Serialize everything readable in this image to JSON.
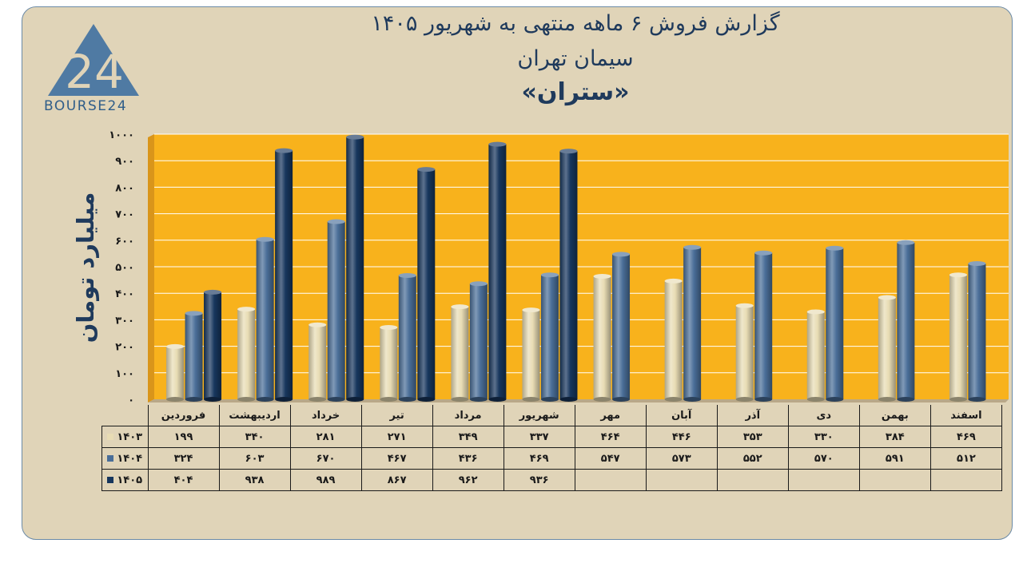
{
  "title_line1": "گزارش  فروش ۶ ماهه منتهی به شهریور ۱۴۰۵",
  "title_line2": "سیمان تهران",
  "title_line3": "«ستران»",
  "logo_text": "BOURSE24",
  "logo_number": "24",
  "chart_data": {
    "type": "bar",
    "ylabel": "میلیارد تومان",
    "ylim": [
      0,
      1000
    ],
    "yticks": [
      "۰",
      "۱۰۰",
      "۲۰۰",
      "۳۰۰",
      "۴۰۰",
      "۵۰۰",
      "۶۰۰",
      "۷۰۰",
      "۸۰۰",
      "۹۰۰",
      "۱۰۰۰"
    ],
    "yticks_values": [
      0,
      100,
      200,
      300,
      400,
      500,
      600,
      700,
      800,
      900,
      1000
    ],
    "categories": [
      "فروردین",
      "اردیبهشت",
      "خرداد",
      "تیر",
      "مرداد",
      "شهریور",
      "مهر",
      "آبان",
      "آذر",
      "دی",
      "بهمن",
      "اسفند"
    ],
    "series": [
      {
        "name": "۱۴۰۳",
        "color": "#e8dcb4",
        "values": [
          199,
          340,
          281,
          271,
          349,
          337,
          464,
          446,
          353,
          330,
          384,
          469
        ],
        "labels": [
          "۱۹۹",
          "۳۴۰",
          "۲۸۱",
          "۲۷۱",
          "۳۴۹",
          "۳۳۷",
          "۴۶۴",
          "۴۴۶",
          "۳۵۳",
          "۳۳۰",
          "۳۸۴",
          "۴۶۹"
        ]
      },
      {
        "name": "۱۴۰۴",
        "color": "#4a6e98",
        "values": [
          324,
          603,
          670,
          467,
          436,
          469,
          547,
          573,
          552,
          570,
          591,
          512
        ],
        "labels": [
          "۳۲۴",
          "۶۰۳",
          "۶۷۰",
          "۴۶۷",
          "۴۳۶",
          "۴۶۹",
          "۵۴۷",
          "۵۷۳",
          "۵۵۲",
          "۵۷۰",
          "۵۹۱",
          "۵۱۲"
        ]
      },
      {
        "name": "۱۴۰۵",
        "color": "#17365d",
        "values": [
          404,
          938,
          989,
          867,
          962,
          936,
          null,
          null,
          null,
          null,
          null,
          null
        ],
        "labels": [
          "۴۰۴",
          "۹۳۸",
          "۹۸۹",
          "۸۶۷",
          "۹۶۲",
          "۹۳۶",
          "",
          "",
          "",
          "",
          "",
          ""
        ]
      }
    ],
    "plot_background": "#f8b21c",
    "grid": true
  }
}
